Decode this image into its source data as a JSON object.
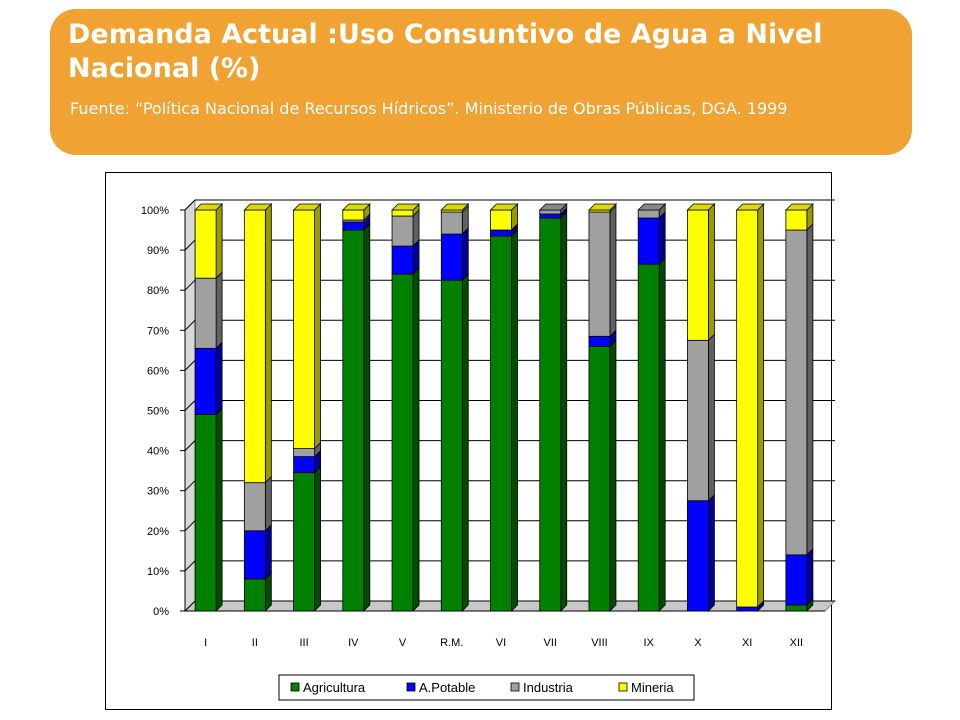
{
  "slide": {
    "title": "Demanda Actual :Uso Consuntivo de Agua a Nivel Nacional  (%)",
    "source": "Fuente: “Política Nacional de Recursos Hídricos”. Ministerio de Obras Públicas, DGA. 1999"
  },
  "colors": {
    "banner": "#F0A232",
    "Agricultura": "#008000",
    "A.Potable": "#0000FF",
    "Industria": "#A0A0A0",
    "Mineria": "#FFFF00"
  },
  "chart_data": {
    "type": "bar",
    "stacked": true,
    "percent": true,
    "categories": [
      "I",
      "II",
      "III",
      "IV",
      "V",
      "R.M.",
      "VI",
      "VII",
      "VIII",
      "IX",
      "X",
      "XI",
      "XII"
    ],
    "series": [
      {
        "name": "Agricultura",
        "values": [
          49,
          8,
          34.5,
          95,
          84,
          82.5,
          93.5,
          98,
          66,
          86.5,
          0,
          0,
          1.5
        ]
      },
      {
        "name": "A.Potable",
        "values": [
          16.5,
          12,
          4,
          2,
          7,
          11.5,
          1.5,
          1,
          2.5,
          11.5,
          27.5,
          1,
          12.5
        ]
      },
      {
        "name": "Industria",
        "values": [
          17.5,
          12,
          2,
          0.5,
          7.5,
          5.5,
          0,
          1,
          31,
          2,
          40,
          0,
          81
        ]
      },
      {
        "name": "Mineria",
        "values": [
          17,
          68,
          59.5,
          2.5,
          1.5,
          0.5,
          5,
          0,
          0.5,
          0,
          32.5,
          99,
          5
        ]
      }
    ],
    "ylim": [
      0,
      100
    ],
    "yticks": [
      0,
      10,
      20,
      30,
      40,
      50,
      60,
      70,
      80,
      90,
      100
    ],
    "ytick_labels": [
      "0%",
      "10%",
      "20%",
      "30%",
      "40%",
      "50%",
      "60%",
      "70%",
      "80%",
      "90%",
      "100%"
    ],
    "grid": true,
    "legend": "bottom"
  }
}
